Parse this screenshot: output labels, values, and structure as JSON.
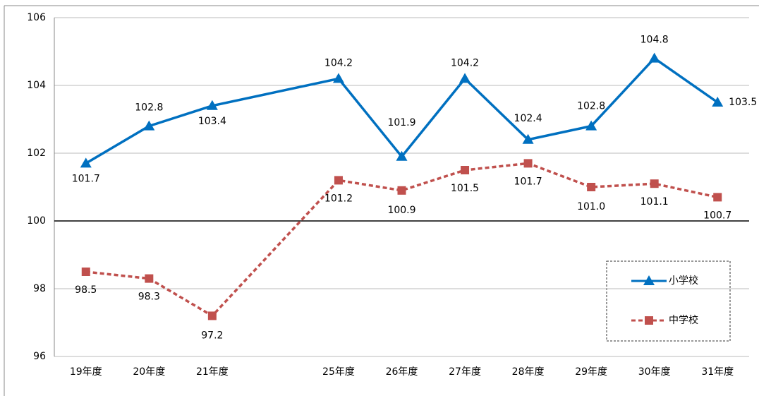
{
  "chart_data": {
    "type": "line",
    "categories": [
      "19年度",
      "20年度",
      "21年度",
      null,
      "25年度",
      "26年度",
      "27年度",
      "28年度",
      "29年度",
      "30年度",
      "31年度"
    ],
    "series": [
      {
        "name": "小学校",
        "color": "#0070c0",
        "marker": "triangle",
        "dash": false,
        "values": [
          101.7,
          102.8,
          103.4,
          null,
          104.2,
          101.9,
          104.2,
          102.4,
          102.8,
          104.8,
          103.5
        ]
      },
      {
        "name": "中学校",
        "color": "#c0504d",
        "marker": "square",
        "dash": true,
        "values": [
          98.5,
          98.3,
          97.2,
          null,
          101.2,
          100.9,
          101.5,
          101.7,
          101.0,
          101.1,
          100.7
        ],
        "value_labels": [
          "98.5",
          "98.3",
          "97.2",
          null,
          "101.2",
          "100.9",
          "101.5",
          "101.7",
          "101.0",
          "101.1",
          "100.7"
        ]
      }
    ],
    "ylim": [
      96,
      106
    ],
    "yticks": [
      96,
      98,
      100,
      102,
      104,
      106
    ],
    "grid": true,
    "x_axis_at": 100,
    "connect_gaps": true,
    "legend": "lower right"
  }
}
